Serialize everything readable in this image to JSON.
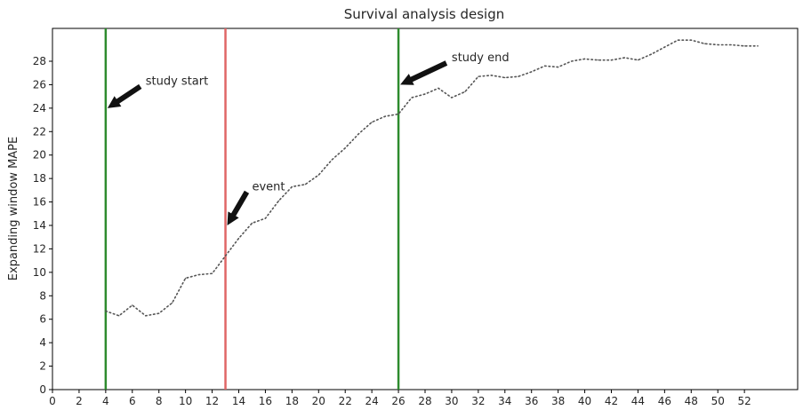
{
  "chart_data": {
    "type": "line",
    "title": "Survival analysis design",
    "xlabel": "",
    "ylabel": "Expanding window MAPE",
    "xlim": [
      0,
      56
    ],
    "ylim": [
      0,
      30.8
    ],
    "xticks": [
      0,
      2,
      4,
      6,
      8,
      10,
      12,
      14,
      16,
      18,
      20,
      22,
      24,
      26,
      28,
      30,
      32,
      34,
      36,
      38,
      40,
      42,
      44,
      46,
      48,
      50,
      52
    ],
    "yticks": [
      0,
      2,
      4,
      6,
      8,
      10,
      12,
      14,
      16,
      18,
      20,
      22,
      24,
      26,
      28
    ],
    "grid": false,
    "series": [
      {
        "line_style": "dotted",
        "color": "#555555",
        "x": [
          4,
          5,
          6,
          7,
          8,
          9,
          10,
          11,
          12,
          13,
          14,
          15,
          16,
          17,
          18,
          19,
          20,
          21,
          22,
          23,
          24,
          25,
          26,
          27,
          28,
          29,
          30,
          31,
          32,
          33,
          34,
          35,
          36,
          37,
          38,
          39,
          40,
          41,
          42,
          43,
          44,
          45,
          46,
          47,
          48,
          49,
          50,
          51,
          52,
          53
        ],
        "values": [
          6.7,
          6.3,
          7.2,
          6.3,
          6.5,
          7.4,
          9.5,
          9.8,
          9.9,
          11.4,
          12.9,
          14.2,
          14.6,
          16.1,
          17.3,
          17.5,
          18.3,
          19.6,
          20.6,
          21.8,
          22.8,
          23.3,
          23.5,
          24.9,
          25.2,
          25.7,
          24.9,
          25.4,
          26.7,
          26.8,
          26.6,
          26.7,
          27.1,
          27.6,
          27.5,
          28.0,
          28.2,
          28.1,
          28.1,
          28.3,
          28.1,
          28.6,
          29.2,
          29.8,
          29.8,
          29.5,
          29.4,
          29.4,
          29.3,
          29.3
        ]
      }
    ],
    "vlines": [
      {
        "x": 4,
        "color": "#2e8b2e"
      },
      {
        "x": 13,
        "color": "#e06666"
      },
      {
        "x": 26,
        "color": "#2e8b2e"
      }
    ],
    "annotations": [
      {
        "text": "study start",
        "x": 7,
        "y": 26.0,
        "arrow_x": 4.0,
        "arrow_y": 24.0
      },
      {
        "text": "event",
        "x": 15,
        "y": 17.0,
        "arrow_x": 13.0,
        "arrow_y": 14.0
      },
      {
        "text": "study end",
        "x": 30,
        "y": 28.0,
        "arrow_x": 26.0,
        "arrow_y": 26.0
      }
    ]
  }
}
